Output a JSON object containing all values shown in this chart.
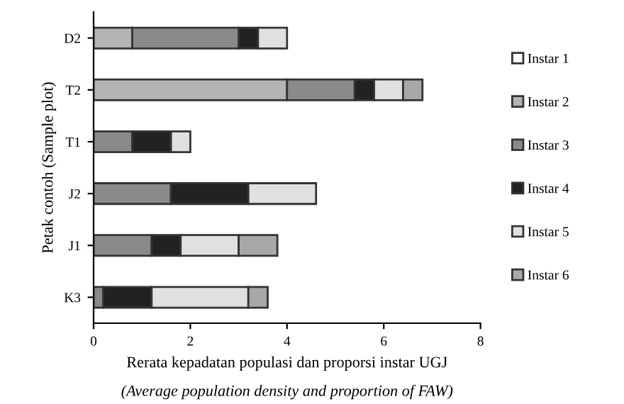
{
  "chart_data": {
    "type": "bar",
    "orientation": "horizontal",
    "stacked": true,
    "categories": [
      "D2",
      "T2",
      "T1",
      "J2",
      "J1",
      "K3"
    ],
    "series": [
      {
        "name": "Instar 1",
        "color": "#ffffff",
        "values": [
          0,
          0,
          0,
          0,
          0,
          0
        ]
      },
      {
        "name": "Instar 2",
        "color": "#b4b4b4",
        "values": [
          0.8,
          4.0,
          0,
          0,
          0,
          0
        ]
      },
      {
        "name": "Instar 3",
        "color": "#8a8a8a",
        "values": [
          2.2,
          1.4,
          0.8,
          1.6,
          1.2,
          0.2
        ]
      },
      {
        "name": "Instar 4",
        "color": "#222222",
        "values": [
          0.4,
          0.4,
          0.8,
          1.6,
          0.6,
          1.0
        ]
      },
      {
        "name": "Instar 5",
        "color": "#e0e0e0",
        "values": [
          0.6,
          0.6,
          0.4,
          1.4,
          1.2,
          2.0
        ]
      },
      {
        "name": "Instar 6",
        "color": "#a8a8a8",
        "values": [
          0,
          0.4,
          0,
          0,
          0.8,
          0.4
        ]
      }
    ],
    "xlim": [
      0,
      8
    ],
    "xticks": [
      0,
      2,
      4,
      6,
      8
    ],
    "xlabel": "Rerata kepadatan populasi dan proporsi instar UGJ\n(Average population density and proportion of FAW)",
    "ylabel": "Petak contoh (Sample plot)",
    "legend": "right",
    "grid": false
  }
}
